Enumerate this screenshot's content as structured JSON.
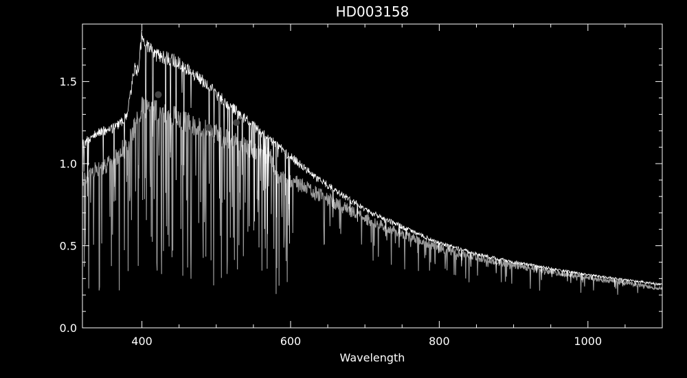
{
  "colors": {
    "background": "#000000",
    "axes": "#ffffff",
    "observed_spectrum": "#ffffff",
    "model_spectrum": "#9a9a9a",
    "photometry_points": "#444444"
  },
  "chart_data": {
    "type": "line",
    "title": "HD003158",
    "xlabel": "Wavelength",
    "ylabel": "",
    "xlim": [
      320,
      1100
    ],
    "ylim": [
      0.0,
      1.85
    ],
    "xticks": [
      400,
      600,
      800,
      1000
    ],
    "xtick_labels": [
      "400",
      "600",
      "800",
      "1000"
    ],
    "yticks": [
      0.0,
      0.5,
      1.0,
      1.5
    ],
    "ytick_labels": [
      "0.0",
      "0.5",
      "1.0",
      "1.5"
    ],
    "grid": false,
    "series": [
      {
        "role": "observed-envelope",
        "x": [
          320,
          340,
          360,
          380,
          390,
          395,
          400,
          405,
          420,
          440,
          460,
          480,
          500,
          520,
          540,
          560,
          580,
          600,
          620,
          640,
          660,
          680,
          700,
          750,
          800,
          850,
          900,
          950,
          1000,
          1050,
          1100
        ],
        "y": [
          1.15,
          1.22,
          1.24,
          1.32,
          1.62,
          1.6,
          1.84,
          1.76,
          1.7,
          1.68,
          1.62,
          1.55,
          1.46,
          1.38,
          1.3,
          1.22,
          1.15,
          1.07,
          0.99,
          0.92,
          0.86,
          0.8,
          0.74,
          0.63,
          0.53,
          0.46,
          0.41,
          0.37,
          0.33,
          0.3,
          0.27
        ]
      },
      {
        "role": "model-envelope",
        "x": [
          320,
          340,
          360,
          380,
          395,
          400,
          420,
          440,
          460,
          480,
          500,
          520,
          540,
          560,
          575,
          580,
          600,
          620,
          640,
          660,
          680,
          700,
          750,
          800,
          850,
          900,
          950,
          1000,
          1050,
          1100
        ],
        "y": [
          0.95,
          1.02,
          1.06,
          1.18,
          1.34,
          1.42,
          1.4,
          1.36,
          1.32,
          1.28,
          1.24,
          1.2,
          1.16,
          1.12,
          1.09,
          0.98,
          0.95,
          0.9,
          0.85,
          0.8,
          0.75,
          0.7,
          0.6,
          0.51,
          0.45,
          0.4,
          0.36,
          0.32,
          0.29,
          0.25
        ]
      },
      {
        "role": "photometry",
        "x": [
          422,
          490,
          527
        ],
        "y": [
          1.42,
          1.22,
          1.25
        ]
      }
    ]
  }
}
